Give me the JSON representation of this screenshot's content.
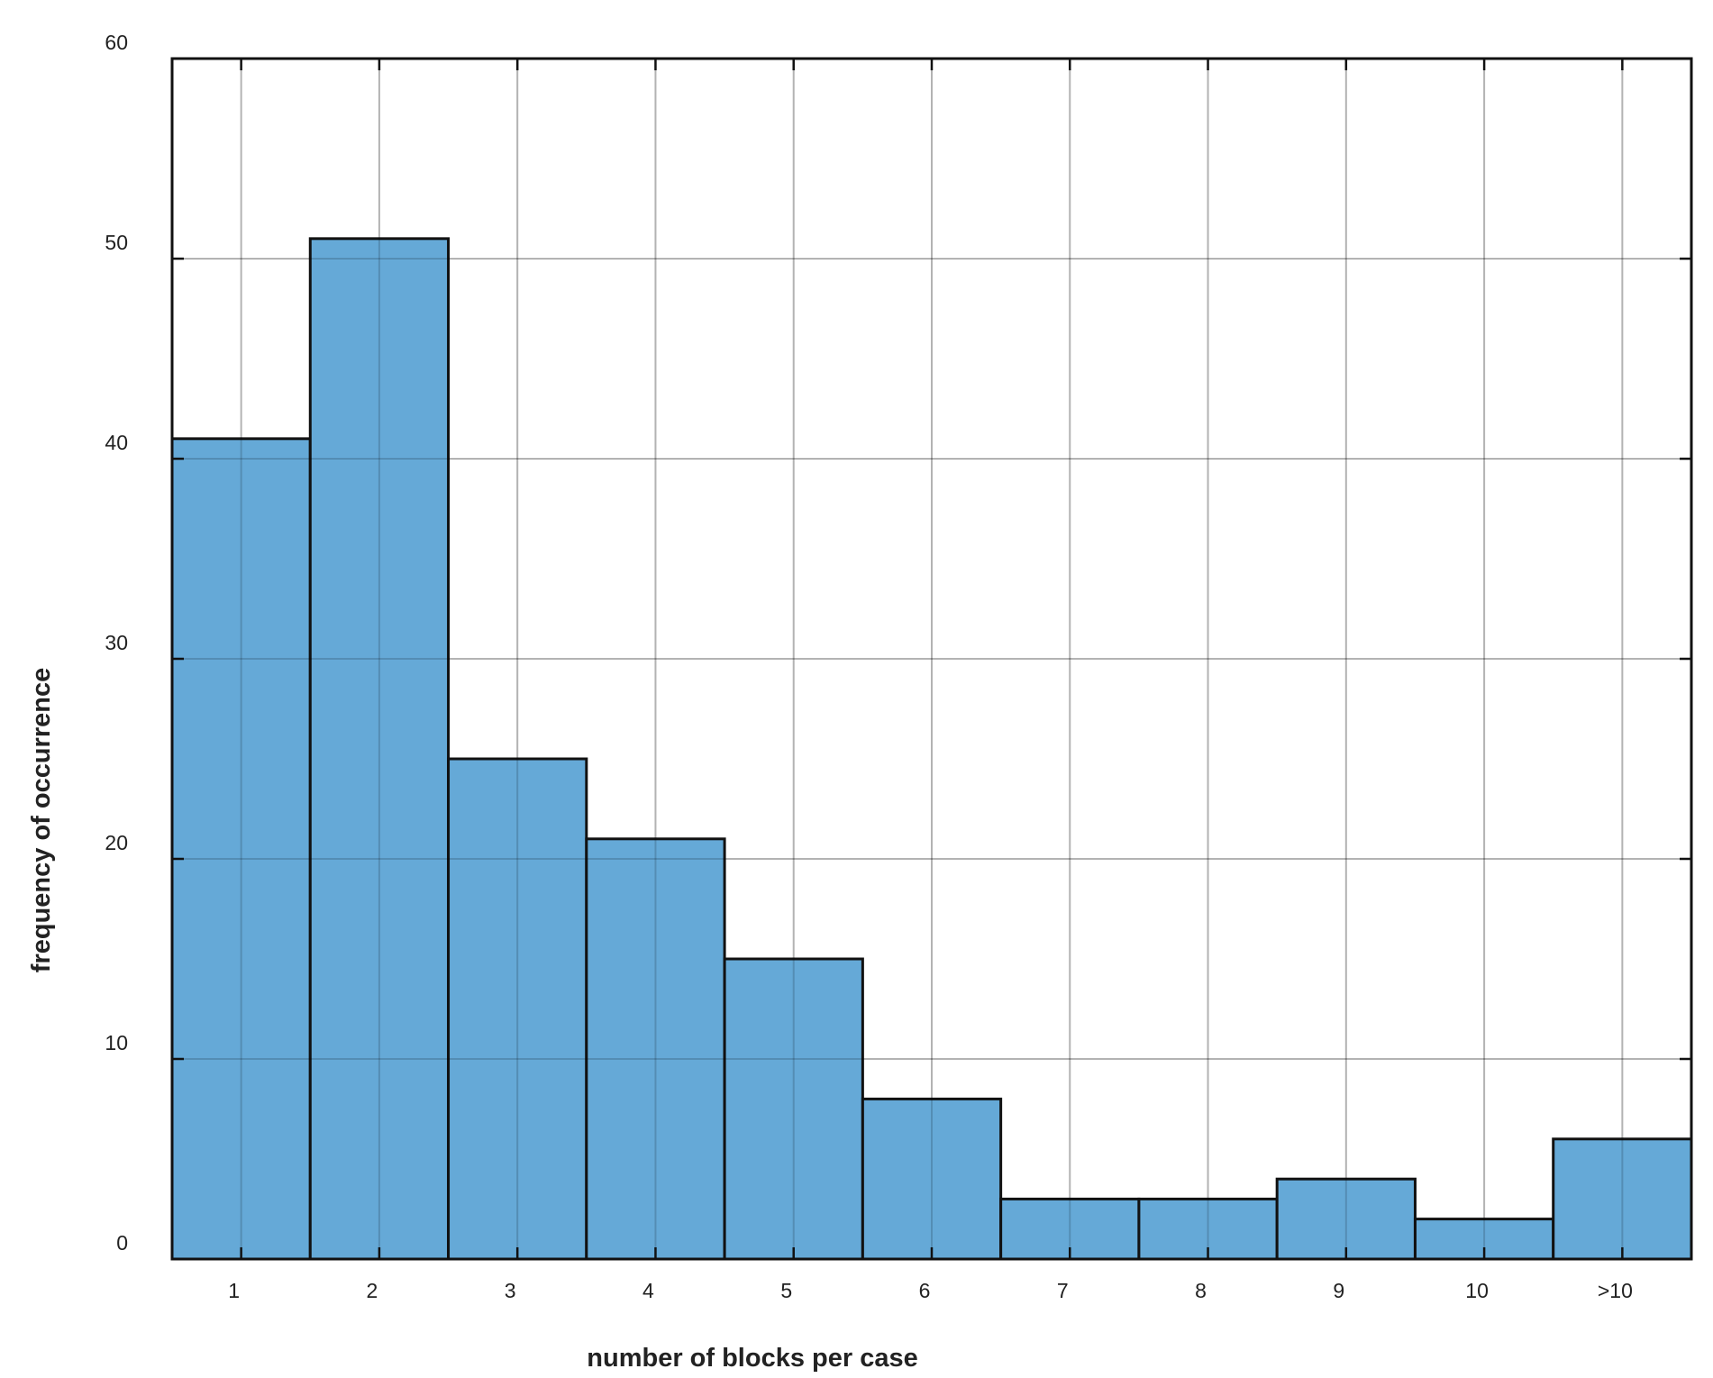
{
  "chart_data": {
    "type": "bar",
    "categories": [
      "1",
      "2",
      "3",
      "4",
      "5",
      "6",
      "7",
      "8",
      "9",
      "10",
      ">10"
    ],
    "values": [
      41,
      51,
      25,
      21,
      15,
      8,
      3,
      3,
      4,
      2,
      6
    ],
    "title": "",
    "xlabel": "number of blocks per case",
    "ylabel": "frequency of occurrence",
    "ylim": [
      0,
      60
    ],
    "yticks": [
      "0",
      "10",
      "20",
      "30",
      "40",
      "50",
      "60"
    ],
    "grid": true,
    "legend": "none",
    "colors": {
      "bar_fill": "#65a9d7",
      "bar_edge": "#111111"
    }
  }
}
